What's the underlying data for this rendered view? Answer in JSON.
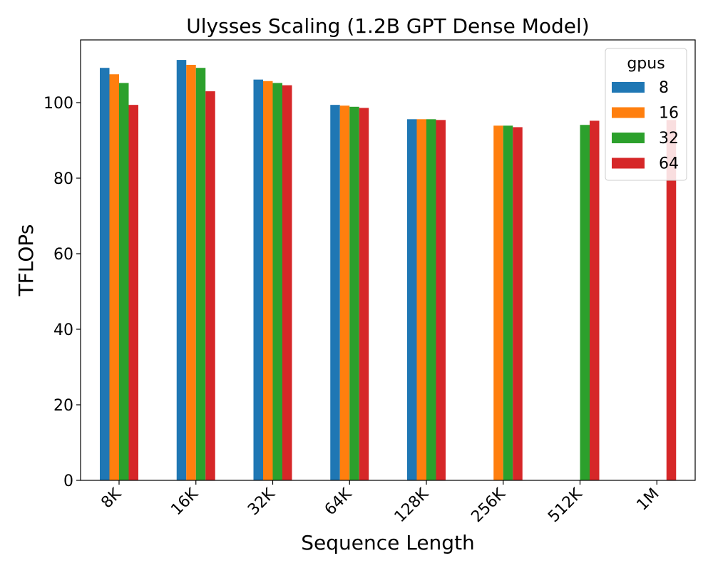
{
  "chart_data": {
    "type": "bar",
    "title": "Ulysses Scaling (1.2B GPT Dense Model)",
    "xlabel": "Sequence Length",
    "ylabel": "TFLOPs",
    "categories": [
      "8K",
      "16K",
      "32K",
      "64K",
      "128K",
      "256K",
      "512K",
      "1M"
    ],
    "ylim": [
      0,
      116.6
    ],
    "yticks": [
      0,
      20,
      40,
      60,
      80,
      100
    ],
    "ytick_labels": [
      "0",
      "20",
      "40",
      "60",
      "80",
      "100"
    ],
    "grid": false,
    "legend": {
      "title": "gpus",
      "placement": "top-right"
    },
    "series": [
      {
        "name": "8",
        "color": "#1f77b4",
        "values": [
          109.2,
          111.3,
          106.1,
          99.4,
          95.6,
          null,
          null,
          null
        ]
      },
      {
        "name": "16",
        "color": "#ff7f0e",
        "values": [
          107.5,
          110.0,
          105.7,
          99.2,
          95.6,
          93.9,
          null,
          null
        ]
      },
      {
        "name": "32",
        "color": "#2ca02c",
        "values": [
          105.2,
          109.2,
          105.2,
          98.9,
          95.6,
          93.9,
          94.1,
          null
        ]
      },
      {
        "name": "64",
        "color": "#d62728",
        "values": [
          99.4,
          103.0,
          104.6,
          98.6,
          95.4,
          93.5,
          95.2,
          95.4
        ]
      }
    ]
  }
}
